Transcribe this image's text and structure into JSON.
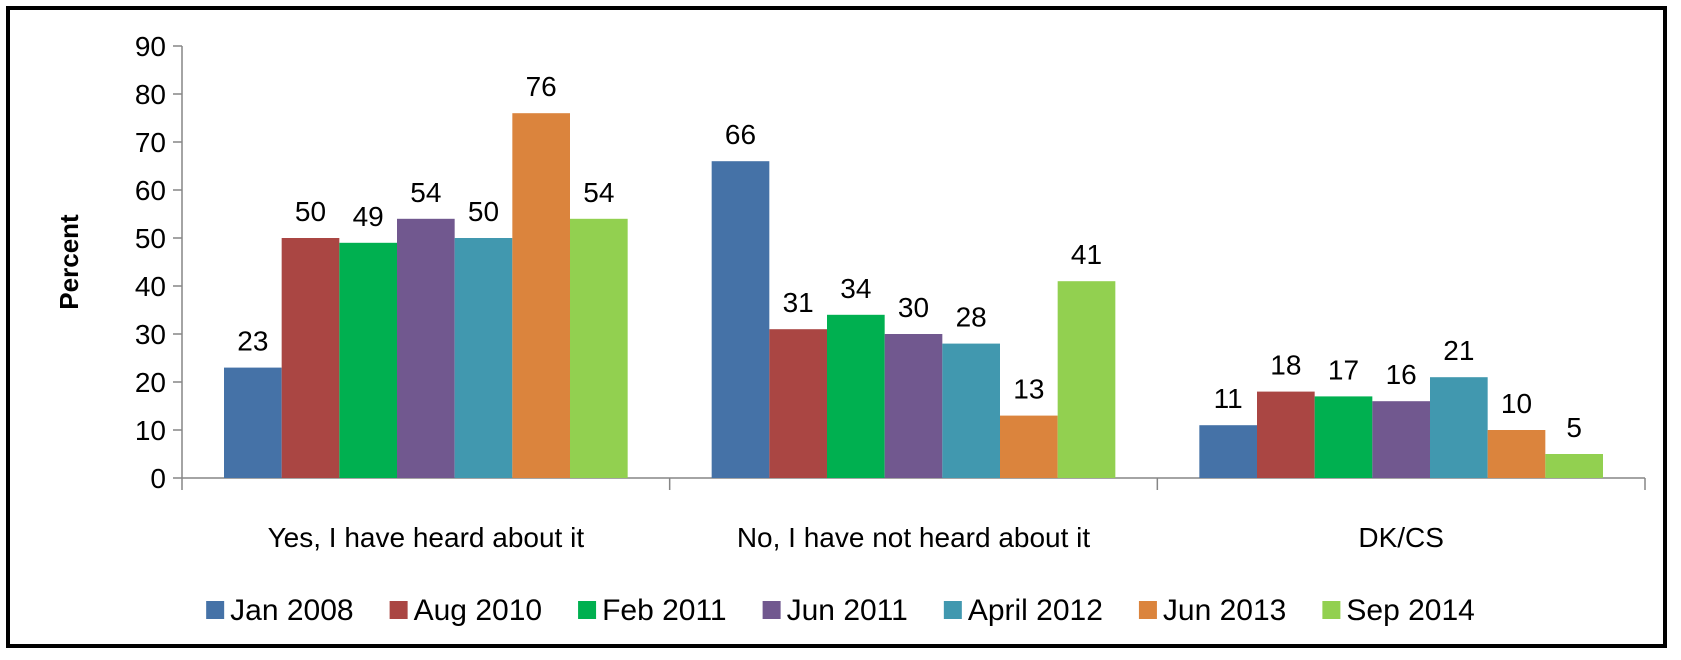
{
  "chart_data": {
    "type": "bar",
    "title": "",
    "xlabel": "",
    "ylabel": "Percent",
    "ylim": [
      0,
      90
    ],
    "ytick_step": 10,
    "yticks": [
      "0",
      "10",
      "20",
      "30",
      "40",
      "50",
      "60",
      "70",
      "80",
      "90"
    ],
    "grid": false,
    "legend_position": "bottom",
    "categories": [
      "Yes, I have heard about it",
      "No, I have not heard about it",
      "DK/CS"
    ],
    "series": [
      {
        "name": "Jan 2008",
        "color": "#4572A7",
        "values": [
          23,
          66,
          11
        ]
      },
      {
        "name": "Aug 2010",
        "color": "#AA4643",
        "values": [
          50,
          31,
          18
        ]
      },
      {
        "name": "Feb 2011",
        "color": "#00B050",
        "values": [
          49,
          34,
          17
        ]
      },
      {
        "name": "Jun 2011",
        "color": "#71588F",
        "values": [
          54,
          30,
          16
        ]
      },
      {
        "name": "April 2012",
        "color": "#4198AF",
        "values": [
          50,
          28,
          21
        ]
      },
      {
        "name": "Jun 2013",
        "color": "#DB843D",
        "values": [
          76,
          13,
          10
        ]
      },
      {
        "name": "Sep 2014",
        "color": "#92D050",
        "values": [
          54,
          41,
          5
        ]
      }
    ]
  }
}
